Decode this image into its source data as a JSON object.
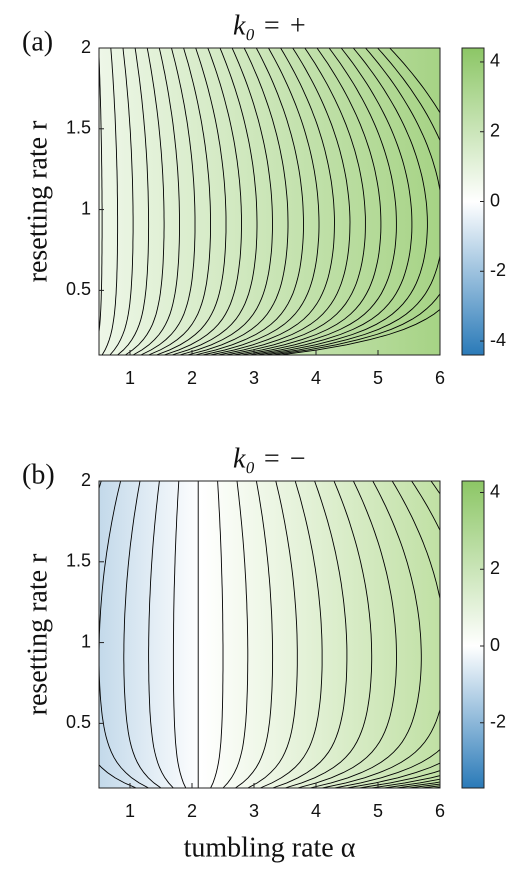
{
  "chart_data": [
    {
      "type": "contour",
      "panel_label": "(a)",
      "title": "k₀ = +",
      "ylabel": "resetting rate r",
      "xlim": [
        0.5,
        6
      ],
      "ylim": [
        0.1,
        2
      ],
      "xticks": [
        1,
        2,
        3,
        4,
        5,
        6
      ],
      "yticks": [
        0.5,
        1,
        1.5,
        2
      ],
      "clim": [
        -4.4,
        4.4
      ],
      "cticks": [
        -4,
        -2,
        0,
        2,
        4
      ],
      "cmap": [
        "#2a7ab8",
        "#ffffff",
        "#8cc665"
      ]
    },
    {
      "type": "contour",
      "panel_label": "(b)",
      "title": "k₀ = −",
      "ylabel": "resetting rate r",
      "xlabel": "tumbling rate α",
      "xlim": [
        0.5,
        6
      ],
      "ylim": [
        0.1,
        2
      ],
      "xticks": [
        1,
        2,
        3,
        4,
        5,
        6
      ],
      "yticks": [
        0.5,
        1,
        1.5,
        2
      ],
      "clim": [
        -3.7,
        4.3
      ],
      "cticks": [
        -2,
        0,
        2,
        4
      ],
      "cmap": [
        "#2a7ab8",
        "#ffffff",
        "#8cc665"
      ]
    }
  ]
}
